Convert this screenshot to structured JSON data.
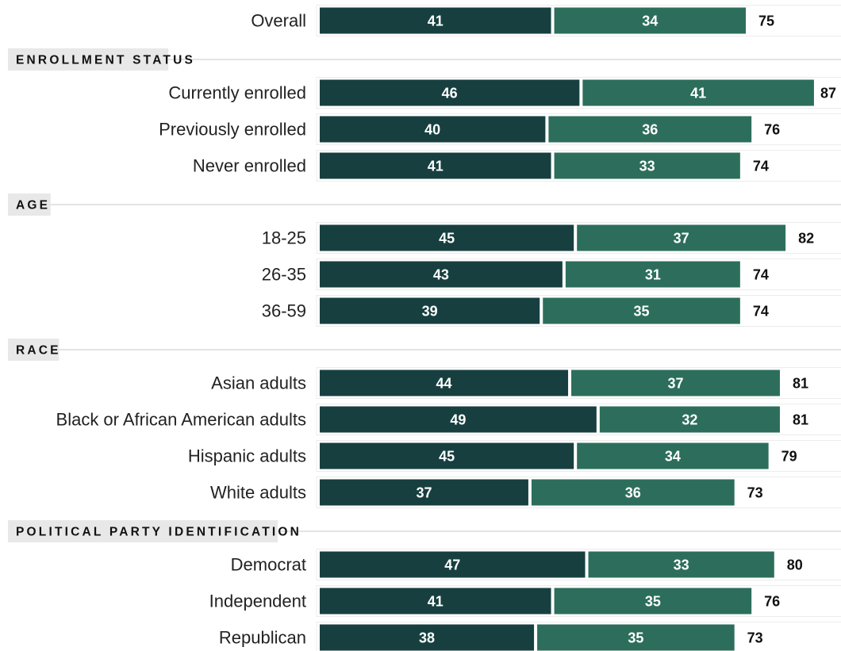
{
  "colors": {
    "series_1": "#173f40",
    "series_2": "#2c6e5b",
    "section_band": "#e8e8e8",
    "rule": "#c8c8c8",
    "text": "#222222"
  },
  "chart_data": {
    "type": "bar",
    "orientation": "horizontal",
    "stacked": true,
    "grid": false,
    "legend": "none",
    "groups": [
      {
        "heading": "",
        "rows": [
          {
            "label": "Overall",
            "values": [
              41,
              34
            ],
            "total": 75
          }
        ]
      },
      {
        "heading": "ENROLLMENT STATUS",
        "rows": [
          {
            "label": "Currently enrolled",
            "values": [
              46,
              41
            ],
            "total": 87
          },
          {
            "label": "Previously enrolled",
            "values": [
              40,
              36
            ],
            "total": 76
          },
          {
            "label": "Never enrolled",
            "values": [
              41,
              33
            ],
            "total": 74
          }
        ]
      },
      {
        "heading": "AGE",
        "rows": [
          {
            "label": "18-25",
            "values": [
              45,
              37
            ],
            "total": 82
          },
          {
            "label": "26-35",
            "values": [
              43,
              31
            ],
            "total": 74
          },
          {
            "label": "36-59",
            "values": [
              39,
              35
            ],
            "total": 74
          }
        ]
      },
      {
        "heading": "RACE",
        "rows": [
          {
            "label": "Asian adults",
            "values": [
              44,
              37
            ],
            "total": 81
          },
          {
            "label": "Black or African American adults",
            "values": [
              49,
              32
            ],
            "total": 81
          },
          {
            "label": "Hispanic adults",
            "values": [
              45,
              34
            ],
            "total": 79
          },
          {
            "label": "White adults",
            "values": [
              37,
              36
            ],
            "total": 73
          }
        ]
      },
      {
        "heading": "POLITICAL PARTY IDENTIFICATION",
        "rows": [
          {
            "label": "Democrat",
            "values": [
              47,
              33
            ],
            "total": 80
          },
          {
            "label": "Independent",
            "values": [
              41,
              35
            ],
            "total": 76
          },
          {
            "label": "Republican",
            "values": [
              38,
              35
            ],
            "total": 73
          }
        ]
      }
    ]
  }
}
